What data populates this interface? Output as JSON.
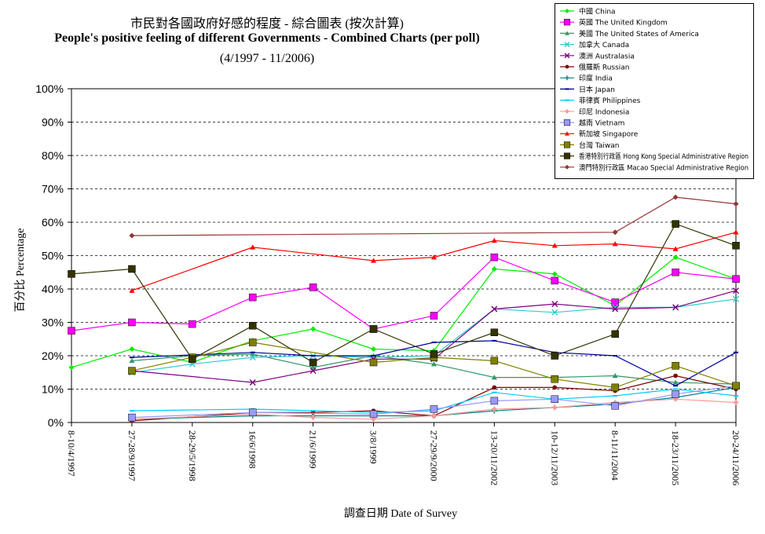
{
  "chart_data": {
    "type": "line",
    "title": "市民對各國政府好感的程度 - 綜合圖表 (按次計算)",
    "subtitle": "People's positive feeling of different Governments - Combined Charts (per poll)",
    "subtitle2": "(4/1997 - 11/2006)",
    "xlabel": "調查日期 Date of Survey",
    "ylabel": "百分比 Percentage",
    "ylim": [
      0,
      100
    ],
    "yticks": [
      "0%",
      "10%",
      "20%",
      "30%",
      "40%",
      "50%",
      "60%",
      "70%",
      "80%",
      "90%",
      "100%"
    ],
    "categories": [
      "8-10/4/1997",
      "27-28/9/1997",
      "28-29/5/1998",
      "16/6/1998",
      "21/6/1999",
      "3/8/1999",
      "27-29/9/2000",
      "13-20/11/2002",
      "10-12/11/2003",
      "8-11/11/2004",
      "18-23/11/2005",
      "20-24/11/2006"
    ],
    "grid": "horizontal dashed",
    "legend_position": "top-right",
    "series": [
      {
        "name": "中國 China",
        "color": "#00ee00",
        "marker": "diamond",
        "values": [
          16.5,
          22,
          18,
          24.5,
          28,
          22,
          21.5,
          46,
          44.5,
          35,
          49.5,
          43
        ]
      },
      {
        "name": "英國 The United Kingdom",
        "color": "#ff00ff",
        "marker": "square",
        "values": [
          27.5,
          30,
          29.5,
          37.5,
          40.5,
          28,
          32,
          49.5,
          42.5,
          36,
          45,
          43
        ]
      },
      {
        "name": "美國 The United States of America",
        "color": "#339966",
        "marker": "triangle",
        "values": [
          null,
          18.5,
          20,
          20.5,
          16.5,
          20,
          17.5,
          13.5,
          13.5,
          14,
          12,
          11.5
        ]
      },
      {
        "name": "加拿大 Canada",
        "color": "#33cccc",
        "marker": "x",
        "values": [
          null,
          15,
          17.5,
          19.5,
          20,
          19.5,
          20,
          34,
          33,
          34.5,
          34.5,
          37
        ]
      },
      {
        "name": "澳洲 Australasia",
        "color": "#800080",
        "marker": "x",
        "values": [
          null,
          15.5,
          null,
          12,
          15.5,
          19,
          19,
          34,
          35.5,
          34,
          34.5,
          39.5
        ]
      },
      {
        "name": "俄羅斯 Russian",
        "color": "#800000",
        "marker": "circle",
        "values": [
          null,
          0.5,
          null,
          3,
          3,
          3.5,
          2,
          10.5,
          10.5,
          9.5,
          14,
          10
        ]
      },
      {
        "name": "印度 India",
        "color": "#008080",
        "marker": "plus",
        "values": [
          null,
          1,
          null,
          2,
          2,
          2,
          2,
          3.5,
          4.5,
          5.5,
          7.5,
          10.5
        ]
      },
      {
        "name": "日本 Japan",
        "color": "#000099",
        "marker": "dash",
        "values": [
          null,
          19.5,
          null,
          21,
          20,
          20,
          24,
          24.5,
          21,
          20,
          11,
          21
        ]
      },
      {
        "name": "菲律賓 Philippines",
        "color": "#00ccff",
        "marker": "dash",
        "values": [
          null,
          3.5,
          null,
          4,
          3.5,
          3,
          3.5,
          9,
          7,
          8,
          10,
          8
        ]
      },
      {
        "name": "印尼 Indonesia",
        "color": "#ff9999",
        "marker": "diamond",
        "values": [
          null,
          1,
          null,
          2.5,
          1.5,
          1,
          2,
          4,
          4.5,
          6,
          7,
          6
        ]
      },
      {
        "name": "越南 Vietnam",
        "color": "#9999ff",
        "marker": "square",
        "values": [
          null,
          1.5,
          null,
          3,
          null,
          2.5,
          4,
          6.5,
          7,
          5,
          8.5,
          11
        ]
      },
      {
        "name": "新加坡 Singapore",
        "color": "#ff0000",
        "marker": "triangle",
        "values": [
          null,
          39.5,
          null,
          52.5,
          null,
          48.5,
          49.5,
          54.5,
          53,
          53.5,
          52,
          57
        ]
      },
      {
        "name": "台灣 Taiwan",
        "color": "#808000",
        "marker": "square",
        "values": [
          null,
          15.5,
          19.5,
          24,
          null,
          18,
          19.5,
          18.5,
          13,
          10.5,
          17,
          11
        ]
      },
      {
        "name": "香港特別行政區 Hong Kong Special Administrative Region",
        "color": "#333300",
        "marker": "square",
        "values": [
          44.5,
          46,
          19,
          29,
          18,
          28,
          20.5,
          27,
          20,
          26.5,
          59.5,
          53
        ]
      },
      {
        "name": "澳門特別行政區 Macao Special Administrative Region",
        "color": "#993333",
        "marker": "diamond",
        "values": [
          null,
          56,
          null,
          null,
          null,
          null,
          null,
          null,
          null,
          57,
          67.5,
          65.5
        ]
      }
    ]
  }
}
